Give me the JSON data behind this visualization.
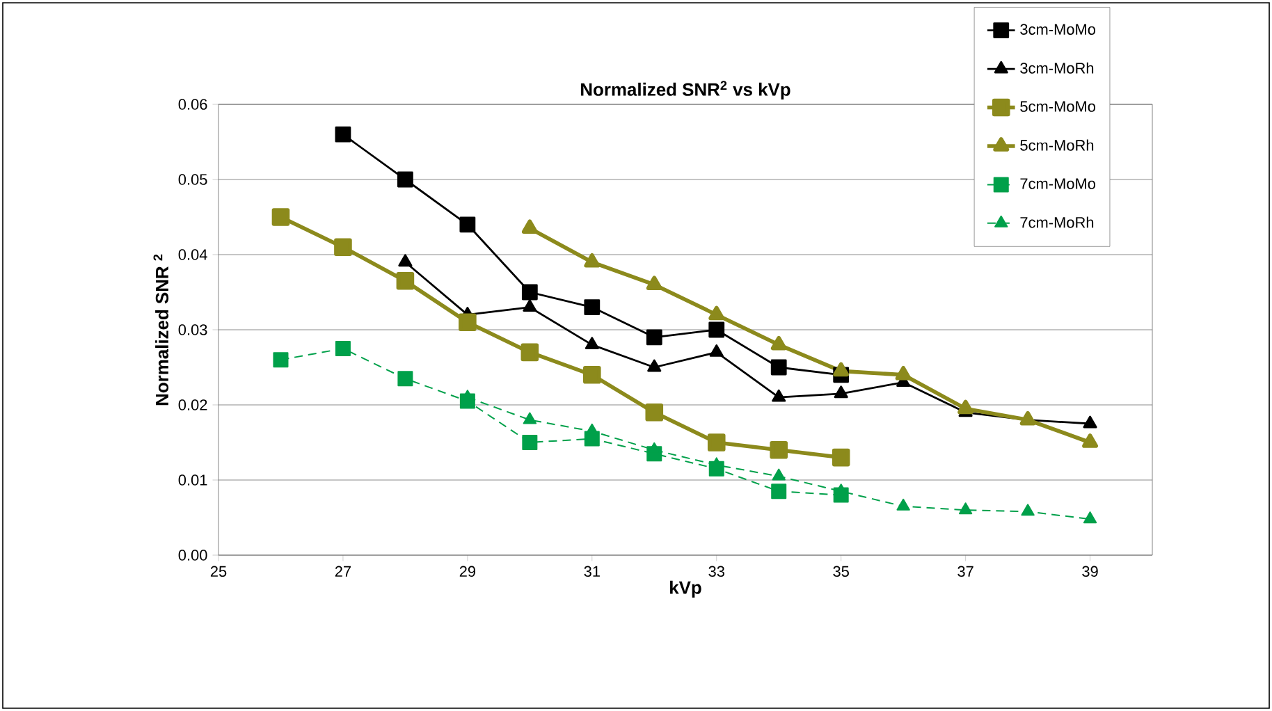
{
  "chart_data": {
    "type": "line",
    "title": "Normalized SNR$^{2}$ vs kVp",
    "xlabel": "kVp",
    "ylabel": "Normalized SNR $^{2}$",
    "xlim": [
      25,
      40
    ],
    "xticks": [
      25,
      27,
      29,
      31,
      33,
      35,
      37,
      39
    ],
    "ylim": [
      0,
      0.06
    ],
    "yticks": [
      {
        "value": 0,
        "label": "0.00"
      },
      {
        "value": 0.01,
        "label": "0.01"
      },
      {
        "value": 0.02,
        "label": "0.02"
      },
      {
        "value": 0.03,
        "label": "0.03"
      },
      {
        "value": 0.04,
        "label": "0.04"
      },
      {
        "value": 0.05,
        "label": "0.05"
      },
      {
        "value": 0.06,
        "label": "0.06"
      }
    ],
    "grid": "y",
    "legend": "right",
    "series": [
      {
        "name": "3cm-MoMo",
        "color": "#000000",
        "marker": "square",
        "line_style": "solid",
        "x": [
          27,
          28,
          29,
          30,
          31,
          32,
          33,
          34,
          35
        ],
        "values": [
          0.056,
          0.05,
          0.044,
          0.035,
          0.033,
          0.029,
          0.03,
          0.025,
          0.024
        ]
      },
      {
        "name": "3cm-MoRh",
        "color": "#000000",
        "marker": "triangle",
        "line_style": "solid",
        "x": [
          28,
          29,
          30,
          31,
          32,
          33,
          34,
          35,
          36,
          37,
          38,
          39
        ],
        "values": [
          0.039,
          0.032,
          0.033,
          0.028,
          0.025,
          0.027,
          0.021,
          0.0215,
          0.023,
          0.019,
          0.018,
          0.0175
        ]
      },
      {
        "name": "5cm-MoMo",
        "color": "#8c8a1c",
        "marker": "square",
        "line_style": "solid",
        "x": [
          26,
          27,
          28,
          29,
          30,
          31,
          32,
          33,
          34,
          35
        ],
        "values": [
          0.045,
          0.041,
          0.0365,
          0.031,
          0.027,
          0.024,
          0.019,
          0.015,
          0.014,
          0.013
        ]
      },
      {
        "name": "5cm-MoRh",
        "color": "#8c8a1c",
        "marker": "triangle",
        "line_style": "solid",
        "x": [
          30,
          31,
          32,
          33,
          34,
          35,
          36,
          37,
          38,
          39
        ],
        "values": [
          0.0435,
          0.039,
          0.036,
          0.032,
          0.028,
          0.0245,
          0.024,
          0.0195,
          0.018,
          0.015
        ]
      },
      {
        "name": "7cm-MoMo",
        "color": "#00a04a",
        "marker": "square",
        "line_style": "dashed",
        "x": [
          26,
          27,
          28,
          29,
          30,
          31,
          32,
          33,
          34,
          35
        ],
        "values": [
          0.026,
          0.0275,
          0.0235,
          0.0205,
          0.015,
          0.0155,
          0.0135,
          0.0115,
          0.0085,
          0.008
        ]
      },
      {
        "name": "7cm-MoRh",
        "color": "#00a04a",
        "marker": "triangle",
        "line_style": "dashed",
        "x": [
          29,
          30,
          31,
          32,
          33,
          34,
          35,
          36,
          37,
          38,
          39
        ],
        "values": [
          0.021,
          0.018,
          0.0165,
          0.014,
          0.012,
          0.0105,
          0.0085,
          0.0065,
          0.006,
          0.0058,
          0.0048
        ]
      }
    ]
  }
}
